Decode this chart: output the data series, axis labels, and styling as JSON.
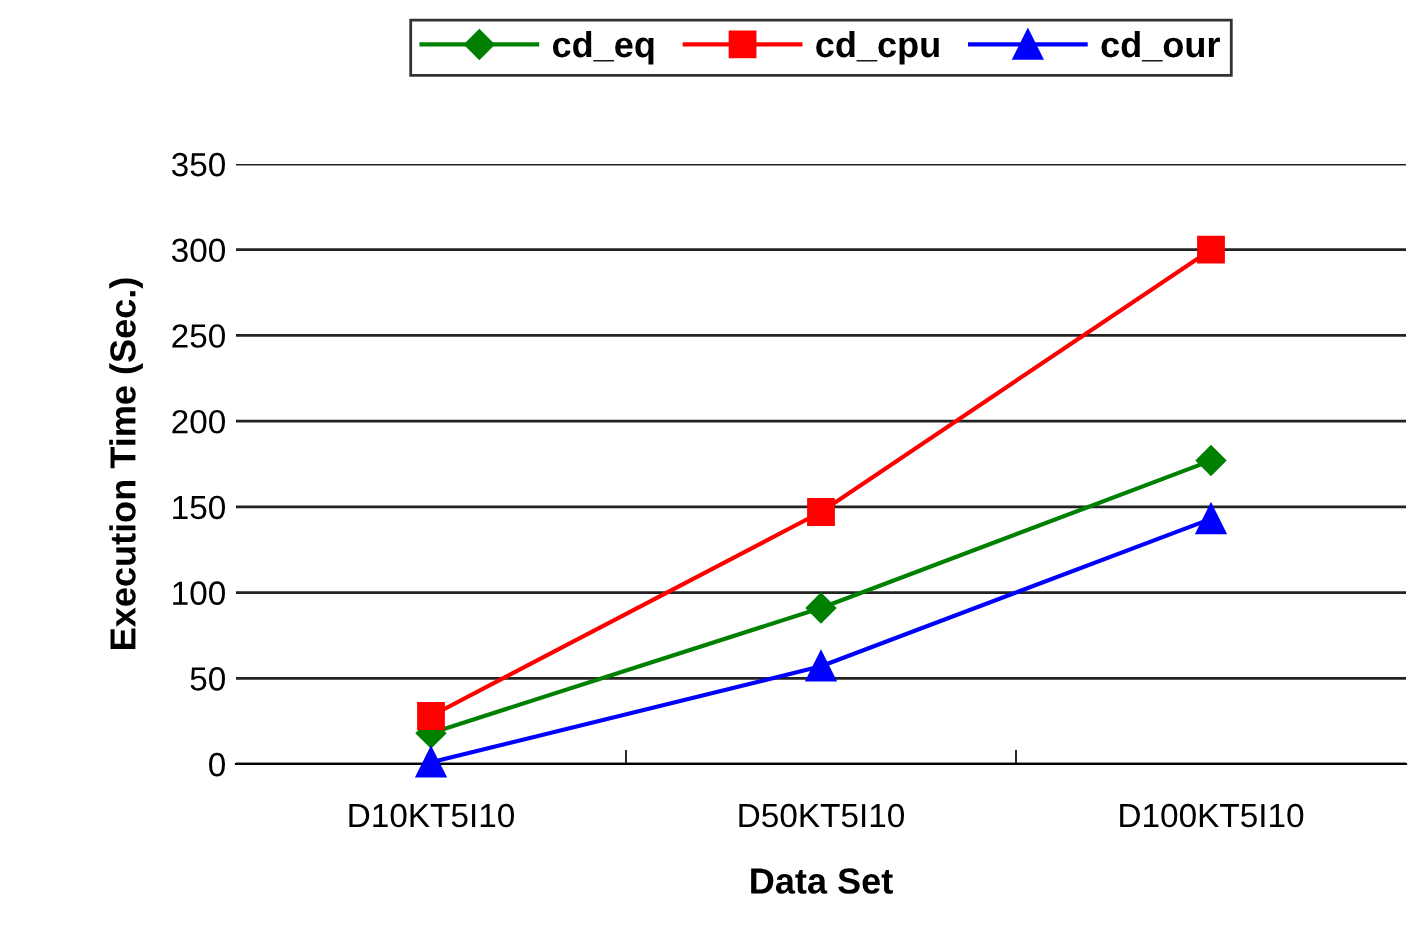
{
  "chart_data": {
    "type": "line",
    "xlabel": "Data Set",
    "ylabel": "Execution Time (Sec.)",
    "categories": [
      "D10KT5I10",
      "D50KT5I10",
      "D100KT5I10"
    ],
    "series": [
      {
        "name": "cd_eq",
        "color": "#008000",
        "marker": "diamond",
        "values": [
          18,
          91,
          177
        ]
      },
      {
        "name": "cd_cpu",
        "color": "#ff0000",
        "marker": "square",
        "values": [
          28,
          147,
          300
        ]
      },
      {
        "name": "cd_our",
        "color": "#0000ff",
        "marker": "triangle",
        "values": [
          1,
          57,
          143
        ]
      }
    ],
    "ylim": [
      0,
      350
    ],
    "yticks": [
      0,
      50,
      100,
      150,
      200,
      250,
      300,
      350
    ],
    "grid": "y",
    "legend": "top"
  }
}
